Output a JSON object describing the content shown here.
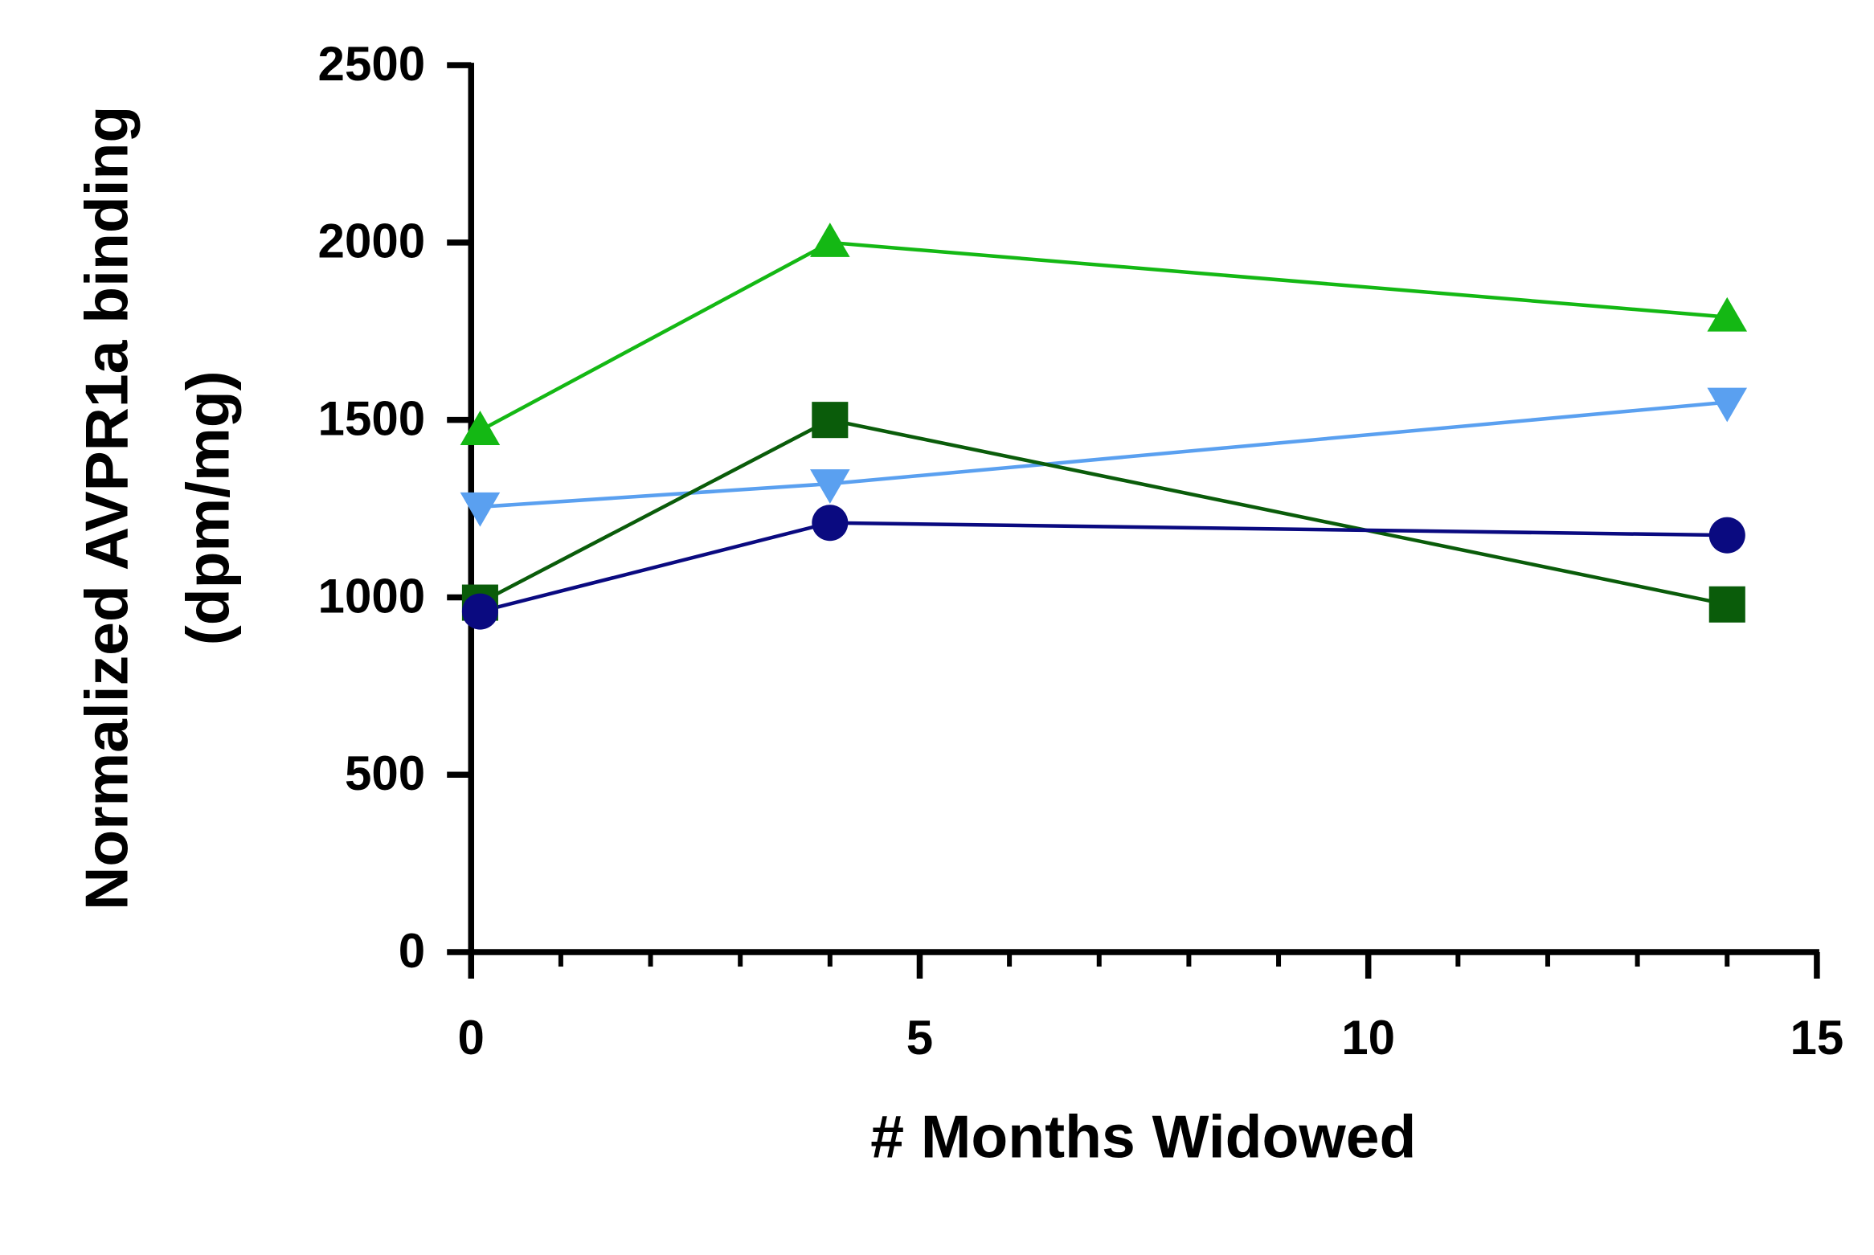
{
  "chart_data": {
    "type": "line",
    "xlabel": "# Months Widowed",
    "ylabel": [
      "Normalized AVPR1a binding",
      "(dpm/mg)"
    ],
    "xlim": [
      0,
      15
    ],
    "xticks": [
      0,
      5,
      10,
      15
    ],
    "xminorticks": [
      1,
      2,
      3,
      4,
      6,
      7,
      8,
      9,
      11,
      12,
      13,
      14
    ],
    "ylim": [
      0,
      2500
    ],
    "yticks": [
      0,
      500,
      1000,
      1500,
      2000,
      2500
    ],
    "x": [
      0.1,
      4,
      14
    ],
    "series": [
      {
        "color": "#14b814",
        "marker": "triangle-up",
        "values": [
          1470,
          2000,
          1790
        ]
      },
      {
        "color": "#5aa0f0",
        "marker": "triangle-down",
        "values": [
          1255,
          1320,
          1550
        ]
      },
      {
        "color": "#0a5c0a",
        "marker": "square",
        "values": [
          985,
          1500,
          980
        ]
      },
      {
        "color": "#0a0a80",
        "marker": "circle",
        "values": [
          960,
          1210,
          1175
        ]
      }
    ]
  }
}
